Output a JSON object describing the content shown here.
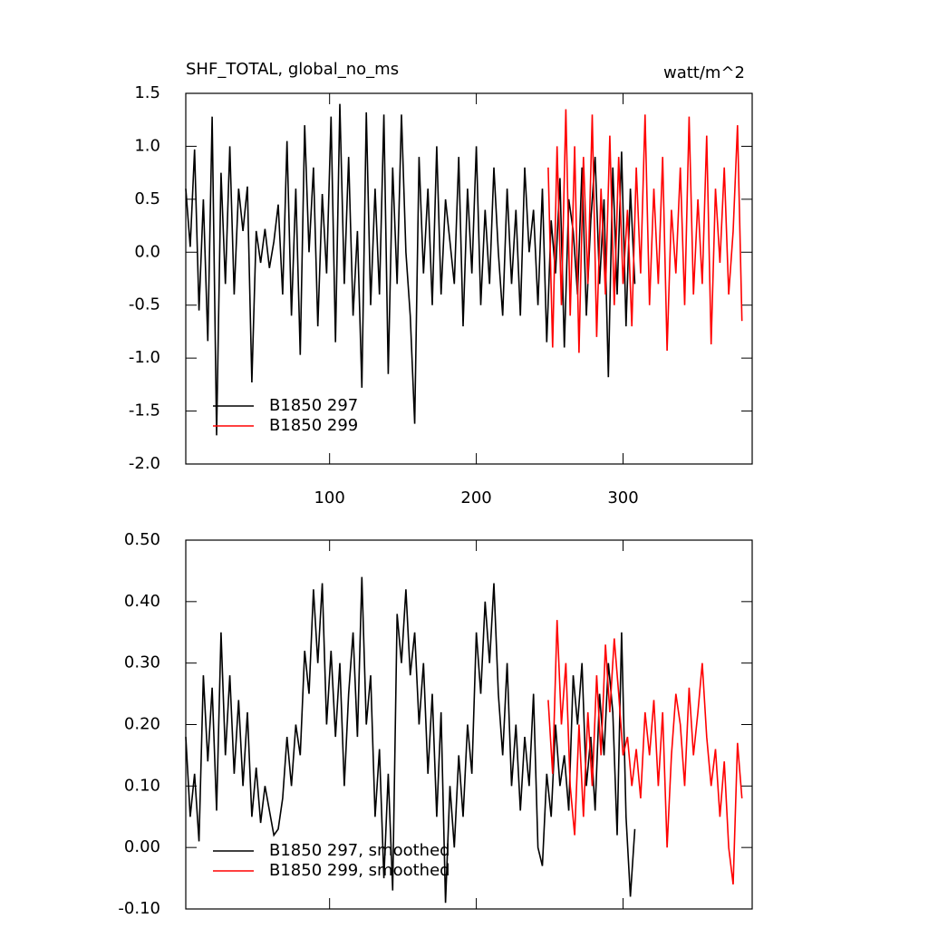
{
  "chart_data": [
    {
      "type": "line",
      "title": "SHF_TOTAL, global_no_ms",
      "right_title": "watt/m^2",
      "xlim": [
        2,
        388
      ],
      "xticks": [
        100,
        200,
        300
      ],
      "xtick_labels": true,
      "ylim": [
        -2.0,
        1.5
      ],
      "yticks": [
        {
          "value": -2.0,
          "label": "-2.0"
        },
        -1.5,
        {
          "value": -1.0,
          "label": "-1.0"
        },
        -0.5,
        {
          "value": 0.0,
          "label": "0.0"
        },
        0.5,
        {
          "value": 1.0,
          "label": "1.0"
        },
        1.5
      ],
      "legend": "lower left",
      "series": [
        {
          "name": "B1850 297",
          "color": "#000000",
          "x": [
            2,
            5,
            8,
            11,
            14,
            17,
            20,
            23,
            26,
            29,
            32,
            35,
            38,
            41,
            44,
            47,
            50,
            53,
            56,
            59,
            62,
            65,
            68,
            71,
            74,
            77,
            80,
            83,
            86,
            89,
            92,
            95,
            98,
            101,
            104,
            107,
            110,
            113,
            116,
            119,
            122,
            125,
            128,
            131,
            134,
            137,
            140,
            143,
            146,
            149,
            152,
            155,
            158,
            161,
            164,
            167,
            170,
            173,
            176,
            179,
            182,
            185,
            188,
            191,
            194,
            197,
            200,
            203,
            206,
            209,
            212,
            215,
            218,
            221,
            224,
            227,
            230,
            233,
            236,
            239,
            242,
            245,
            248,
            251,
            254,
            257,
            260,
            263,
            266,
            269,
            272,
            275,
            278,
            281,
            284,
            287,
            290,
            293,
            296,
            299,
            302,
            305,
            308
          ],
          "values": [
            0.6,
            0.05,
            0.97,
            -0.55,
            0.5,
            -0.84,
            1.28,
            -1.73,
            0.75,
            -0.3,
            1.0,
            -0.4,
            0.6,
            0.2,
            0.62,
            -1.23,
            0.2,
            -0.1,
            0.22,
            -0.15,
            0.1,
            0.45,
            -0.4,
            1.05,
            -0.6,
            0.6,
            -0.97,
            1.2,
            0.0,
            0.8,
            -0.7,
            0.55,
            -0.2,
            1.28,
            -0.85,
            1.4,
            -0.3,
            0.9,
            -0.6,
            0.2,
            -1.28,
            1.32,
            -0.5,
            0.6,
            -0.4,
            1.3,
            -1.15,
            0.8,
            -0.3,
            1.3,
            0.0,
            -0.6,
            -1.62,
            0.9,
            -0.2,
            0.6,
            -0.5,
            1.0,
            -0.4,
            0.5,
            0.1,
            -0.3,
            0.9,
            -0.7,
            0.6,
            -0.2,
            1.0,
            -0.5,
            0.4,
            -0.3,
            0.8,
            0.0,
            -0.6,
            0.6,
            -0.3,
            0.4,
            -0.6,
            0.8,
            0.0,
            0.4,
            -0.5,
            0.6,
            -0.85,
            0.3,
            -0.2,
            0.7,
            -0.9,
            0.5,
            0.2,
            -0.4,
            0.8,
            -0.6,
            0.3,
            0.9,
            -0.3,
            0.5,
            -1.18,
            0.8,
            -0.4,
            0.95,
            -0.7,
            0.6,
            -0.3
          ]
        },
        {
          "name": "B1850 299",
          "color": "#ff0000",
          "x": [
            249,
            252,
            255,
            258,
            261,
            264,
            267,
            270,
            273,
            276,
            279,
            282,
            285,
            288,
            291,
            294,
            297,
            300,
            303,
            306,
            309,
            312,
            315,
            318,
            321,
            324,
            327,
            330,
            333,
            336,
            339,
            342,
            345,
            348,
            351,
            354,
            357,
            360,
            363,
            366,
            369,
            372,
            375,
            378,
            381
          ],
          "values": [
            0.8,
            -0.9,
            1.0,
            -0.5,
            1.35,
            -0.6,
            1.0,
            -0.95,
            0.9,
            -0.3,
            1.3,
            -0.8,
            0.6,
            -0.4,
            1.1,
            -0.5,
            0.9,
            -0.3,
            0.4,
            -0.7,
            0.8,
            -0.2,
            1.3,
            -0.5,
            0.6,
            -0.3,
            0.9,
            -0.93,
            0.4,
            -0.2,
            0.8,
            -0.5,
            1.28,
            -0.4,
            0.5,
            -0.3,
            1.1,
            -0.87,
            0.6,
            -0.1,
            0.8,
            -0.4,
            0.2,
            1.2,
            -0.65
          ]
        }
      ]
    },
    {
      "type": "line",
      "xlim": [
        2,
        388
      ],
      "xticks": [
        100,
        200,
        300
      ],
      "xtick_labels": false,
      "ylim": [
        -0.1,
        0.5
      ],
      "yticks": [
        {
          "value": -0.1,
          "label": "-0.10"
        },
        {
          "value": 0.0,
          "label": "0.00"
        },
        {
          "value": 0.1,
          "label": "0.10"
        },
        {
          "value": 0.2,
          "label": "0.20"
        },
        {
          "value": 0.3,
          "label": "0.30"
        },
        {
          "value": 0.4,
          "label": "0.40"
        },
        {
          "value": 0.5,
          "label": "0.50"
        }
      ],
      "legend": "lower left",
      "series": [
        {
          "name": "B1850 297, smoothed",
          "color": "#000000",
          "x": [
            2,
            5,
            8,
            11,
            14,
            17,
            20,
            23,
            26,
            29,
            32,
            35,
            38,
            41,
            44,
            47,
            50,
            53,
            56,
            59,
            62,
            65,
            68,
            71,
            74,
            77,
            80,
            83,
            86,
            89,
            92,
            95,
            98,
            101,
            104,
            107,
            110,
            113,
            116,
            119,
            122,
            125,
            128,
            131,
            134,
            137,
            140,
            143,
            146,
            149,
            152,
            155,
            158,
            161,
            164,
            167,
            170,
            173,
            176,
            179,
            182,
            185,
            188,
            191,
            194,
            197,
            200,
            203,
            206,
            209,
            212,
            215,
            218,
            221,
            224,
            227,
            230,
            233,
            236,
            239,
            242,
            245,
            248,
            251,
            254,
            257,
            260,
            263,
            266,
            269,
            272,
            275,
            278,
            281,
            284,
            287,
            290,
            293,
            296,
            299,
            302,
            305,
            308
          ],
          "values": [
            0.18,
            0.05,
            0.12,
            0.01,
            0.28,
            0.14,
            0.26,
            0.06,
            0.35,
            0.15,
            0.28,
            0.12,
            0.24,
            0.1,
            0.22,
            0.05,
            0.13,
            0.04,
            0.1,
            0.06,
            0.02,
            0.03,
            0.08,
            0.18,
            0.1,
            0.2,
            0.15,
            0.32,
            0.25,
            0.42,
            0.3,
            0.43,
            0.2,
            0.32,
            0.18,
            0.3,
            0.1,
            0.25,
            0.35,
            0.18,
            0.44,
            0.2,
            0.28,
            0.05,
            0.16,
            -0.05,
            0.12,
            -0.07,
            0.38,
            0.3,
            0.42,
            0.28,
            0.35,
            0.2,
            0.3,
            0.12,
            0.25,
            0.05,
            0.22,
            -0.09,
            0.1,
            0.0,
            0.15,
            0.05,
            0.2,
            0.12,
            0.35,
            0.25,
            0.4,
            0.3,
            0.43,
            0.25,
            0.15,
            0.3,
            0.1,
            0.2,
            0.06,
            0.18,
            0.1,
            0.25,
            0.0,
            -0.03,
            0.12,
            0.05,
            0.2,
            0.1,
            0.15,
            0.06,
            0.28,
            0.2,
            0.3,
            0.1,
            0.18,
            0.06,
            0.25,
            0.15,
            0.3,
            0.22,
            0.02,
            0.35,
            0.05,
            -0.08,
            0.03
          ]
        },
        {
          "name": "B1850 299, smoothed",
          "color": "#ff0000",
          "x": [
            249,
            252,
            255,
            258,
            261,
            264,
            267,
            270,
            273,
            276,
            279,
            282,
            285,
            288,
            291,
            294,
            297,
            300,
            303,
            306,
            309,
            312,
            315,
            318,
            321,
            324,
            327,
            330,
            333,
            336,
            339,
            342,
            345,
            348,
            351,
            354,
            357,
            360,
            363,
            366,
            369,
            372,
            375,
            378,
            381
          ],
          "values": [
            0.24,
            0.12,
            0.37,
            0.2,
            0.3,
            0.1,
            0.02,
            0.2,
            0.05,
            0.22,
            0.1,
            0.28,
            0.15,
            0.33,
            0.22,
            0.34,
            0.25,
            0.15,
            0.18,
            0.1,
            0.16,
            0.08,
            0.22,
            0.15,
            0.24,
            0.1,
            0.22,
            0.0,
            0.15,
            0.25,
            0.2,
            0.1,
            0.26,
            0.15,
            0.22,
            0.3,
            0.18,
            0.1,
            0.16,
            0.05,
            0.14,
            0.0,
            -0.06,
            0.17,
            0.08
          ]
        }
      ]
    }
  ]
}
